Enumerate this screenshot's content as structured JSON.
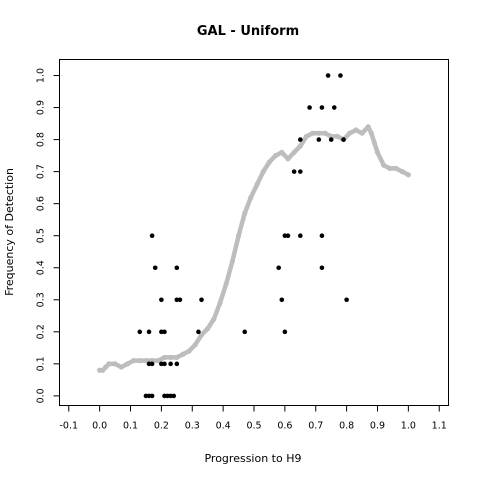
{
  "chart_data": {
    "type": "scatter",
    "title": "GAL - Uniform",
    "xlabel": "Progression to H9",
    "ylabel": "Frequency of Detection",
    "xlim": [
      -0.13,
      1.13
    ],
    "ylim": [
      -0.03,
      1.05
    ],
    "xticks": [
      "-0.1",
      "0.0",
      "0.1",
      "0.2",
      "0.3",
      "0.4",
      "0.5",
      "0.6",
      "0.7",
      "0.8",
      "0.9",
      "1.0",
      "1.1"
    ],
    "xtick_values": [
      -0.1,
      0.0,
      0.1,
      0.2,
      0.3,
      0.4,
      0.5,
      0.6,
      0.7,
      0.8,
      0.9,
      1.0,
      1.1
    ],
    "yticks": [
      "0.0",
      "0.1",
      "0.2",
      "0.3",
      "0.4",
      "0.5",
      "0.6",
      "0.7",
      "0.8",
      "0.9",
      "1.0"
    ],
    "ytick_values": [
      0.0,
      0.1,
      0.2,
      0.3,
      0.4,
      0.5,
      0.6,
      0.7,
      0.8,
      0.9,
      1.0
    ],
    "grid": false,
    "series": [
      {
        "color": "#bdbdbd",
        "marker": "point-line",
        "points": [
          [
            0.0,
            0.08
          ],
          [
            0.01,
            0.08
          ],
          [
            0.02,
            0.09
          ],
          [
            0.03,
            0.1
          ],
          [
            0.05,
            0.1
          ],
          [
            0.07,
            0.09
          ],
          [
            0.09,
            0.1
          ],
          [
            0.11,
            0.11
          ],
          [
            0.13,
            0.11
          ],
          [
            0.15,
            0.11
          ],
          [
            0.17,
            0.11
          ],
          [
            0.19,
            0.11
          ],
          [
            0.21,
            0.12
          ],
          [
            0.23,
            0.12
          ],
          [
            0.25,
            0.12
          ],
          [
            0.27,
            0.13
          ],
          [
            0.29,
            0.14
          ],
          [
            0.31,
            0.16
          ],
          [
            0.33,
            0.19
          ],
          [
            0.35,
            0.21
          ],
          [
            0.37,
            0.24
          ],
          [
            0.39,
            0.29
          ],
          [
            0.41,
            0.35
          ],
          [
            0.43,
            0.42
          ],
          [
            0.45,
            0.5
          ],
          [
            0.47,
            0.57
          ],
          [
            0.49,
            0.62
          ],
          [
            0.51,
            0.66
          ],
          [
            0.53,
            0.7
          ],
          [
            0.55,
            0.73
          ],
          [
            0.57,
            0.75
          ],
          [
            0.59,
            0.76
          ],
          [
            0.61,
            0.74
          ],
          [
            0.63,
            0.76
          ],
          [
            0.65,
            0.78
          ],
          [
            0.67,
            0.81
          ],
          [
            0.69,
            0.82
          ],
          [
            0.71,
            0.82
          ],
          [
            0.73,
            0.82
          ],
          [
            0.75,
            0.81
          ],
          [
            0.77,
            0.81
          ],
          [
            0.79,
            0.8
          ],
          [
            0.81,
            0.82
          ],
          [
            0.83,
            0.83
          ],
          [
            0.85,
            0.82
          ],
          [
            0.87,
            0.84
          ],
          [
            0.88,
            0.82
          ],
          [
            0.89,
            0.79
          ],
          [
            0.9,
            0.76
          ],
          [
            0.92,
            0.72
          ],
          [
            0.94,
            0.71
          ],
          [
            0.96,
            0.71
          ],
          [
            0.98,
            0.7
          ],
          [
            1.0,
            0.69
          ]
        ]
      },
      {
        "color": "#000000",
        "marker": "point",
        "points": [
          [
            0.15,
            0.0
          ],
          [
            0.16,
            0.0
          ],
          [
            0.17,
            0.0
          ],
          [
            0.21,
            0.0
          ],
          [
            0.22,
            0.0
          ],
          [
            0.23,
            0.0
          ],
          [
            0.24,
            0.0
          ],
          [
            0.16,
            0.1
          ],
          [
            0.17,
            0.1
          ],
          [
            0.2,
            0.1
          ],
          [
            0.21,
            0.1
          ],
          [
            0.23,
            0.1
          ],
          [
            0.25,
            0.1
          ],
          [
            0.13,
            0.2
          ],
          [
            0.16,
            0.2
          ],
          [
            0.2,
            0.2
          ],
          [
            0.21,
            0.2
          ],
          [
            0.32,
            0.2
          ],
          [
            0.47,
            0.2
          ],
          [
            0.6,
            0.2
          ],
          [
            0.2,
            0.3
          ],
          [
            0.25,
            0.3
          ],
          [
            0.26,
            0.3
          ],
          [
            0.33,
            0.3
          ],
          [
            0.59,
            0.3
          ],
          [
            0.8,
            0.3
          ],
          [
            0.18,
            0.4
          ],
          [
            0.25,
            0.4
          ],
          [
            0.58,
            0.4
          ],
          [
            0.72,
            0.4
          ],
          [
            0.17,
            0.5
          ],
          [
            0.6,
            0.5
          ],
          [
            0.61,
            0.5
          ],
          [
            0.65,
            0.5
          ],
          [
            0.72,
            0.5
          ],
          [
            0.63,
            0.7
          ],
          [
            0.65,
            0.7
          ],
          [
            0.65,
            0.8
          ],
          [
            0.71,
            0.8
          ],
          [
            0.75,
            0.8
          ],
          [
            0.79,
            0.8
          ],
          [
            0.68,
            0.9
          ],
          [
            0.72,
            0.9
          ],
          [
            0.76,
            0.9
          ],
          [
            0.74,
            1.0
          ],
          [
            0.78,
            1.0
          ]
        ]
      }
    ]
  }
}
